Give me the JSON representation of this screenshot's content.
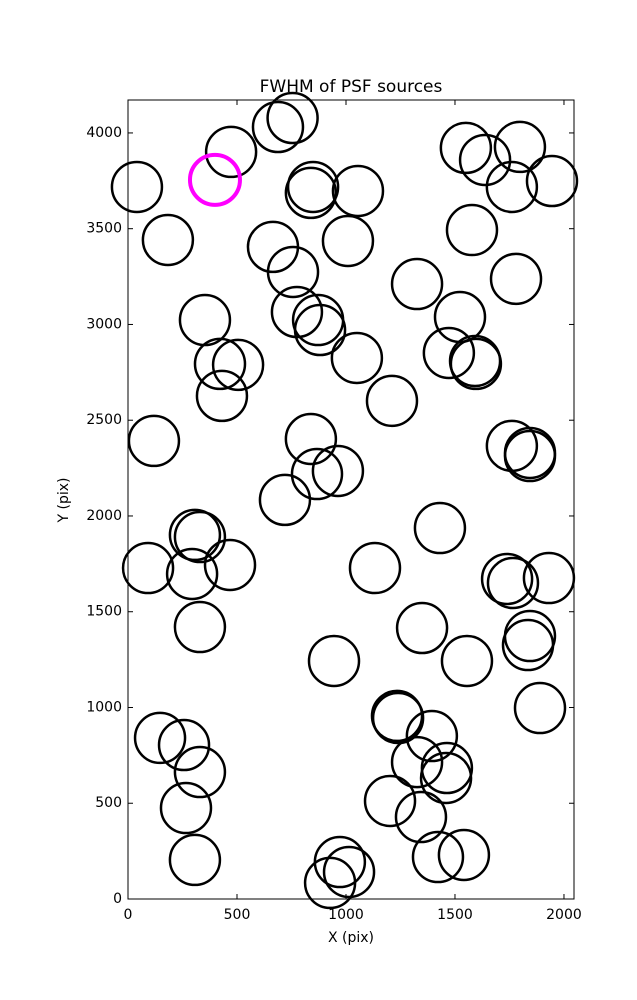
{
  "chart_data": {
    "type": "scatter",
    "title": "FWHM of PSF sources",
    "xlabel": "X (pix)",
    "ylabel": "Y (pix)",
    "xlim": [
      0,
      2046
    ],
    "ylim": [
      0,
      4172
    ],
    "xticks": [
      0,
      500,
      1000,
      1500,
      2000
    ],
    "yticks": [
      0,
      500,
      1000,
      1500,
      2000,
      2500,
      3000,
      3500,
      4000
    ],
    "grid": false,
    "series": [
      {
        "color": "#000000",
        "x": [
          41,
          183,
          473,
          688,
          755,
          849,
          839,
          1055,
          1009,
          665,
          757,
          353,
          775,
          872,
          881,
          1050,
          422,
          505,
          431,
          1211,
          119,
          839,
          963,
          867,
          720,
          307,
          330,
          468,
          92,
          294,
          330,
          945,
          1133,
          1431,
          1349,
          1555,
          147,
          257,
          330,
          266,
          307,
          927,
          972,
          1014,
          1234,
          1239,
          1394,
          1326,
          1463,
          1459,
          1202,
          1344,
          1422,
          1541,
          1550,
          1638,
          1798,
          1761,
          1945,
          1578,
          1780,
          1326,
          1523,
          1472,
          1592,
          1596,
          1761,
          1844,
          1844,
          1739,
          1766,
          1931,
          1844,
          1835,
          1890
        ],
        "values": [
          3718,
          3441,
          3901,
          4031,
          4078,
          3718,
          3687,
          3697,
          3436,
          3405,
          3274,
          3023,
          3065,
          3023,
          2971,
          2825,
          2794,
          2789,
          2627,
          2601,
          2392,
          2402,
          2235,
          2219,
          2084,
          1901,
          1890,
          1744,
          1728,
          1697,
          1420,
          1243,
          1728,
          1937,
          1415,
          1243,
          841,
          804,
          663,
          475,
          204,
          84,
          193,
          141,
          956,
          945,
          851,
          715,
          684,
          632,
          512,
          428,
          219,
          230,
          3922,
          3859,
          3927,
          3718,
          3749,
          3493,
          3238,
          3211,
          3039,
          2851,
          2809,
          2794,
          2366,
          2329,
          2313,
          1671,
          1650,
          1676,
          1373,
          1326,
          997
        ]
      },
      {
        "color": "#ff00ff",
        "x": [
          399
        ],
        "values": [
          3755
        ]
      }
    ]
  }
}
